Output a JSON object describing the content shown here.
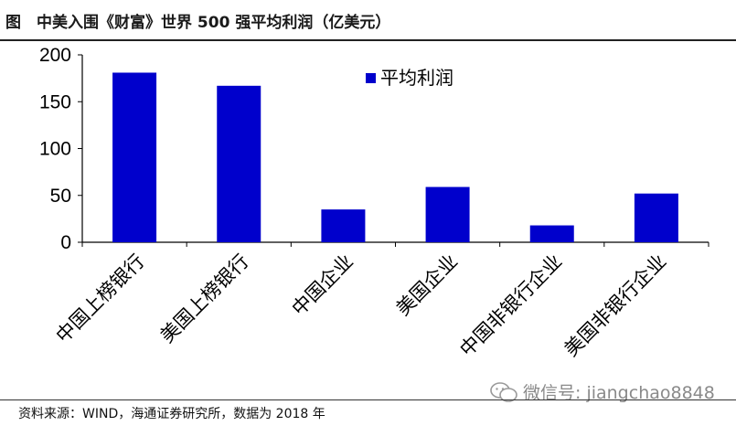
{
  "header": {
    "title": "图　中美入围《财富》世界 500 强平均利润（亿美元）"
  },
  "footer": {
    "source": "资料来源：WIND，海通证券研究所，数据为 2018 年",
    "watermark": "微信号: jiangchao8848"
  },
  "colors": {
    "bar": "#0000CC",
    "axis": "#000000"
  },
  "chart_data": {
    "type": "bar",
    "categories": [
      "中国上榜银行",
      "美国上榜银行",
      "中国企业",
      "美国企业",
      "中国非银行企业",
      "美国非银行企业"
    ],
    "series": [
      {
        "name": "平均利润",
        "values": [
          181,
          167,
          35,
          59,
          18,
          52
        ]
      }
    ],
    "ylim": [
      0,
      200
    ],
    "yticks": [
      0,
      50,
      100,
      150,
      200
    ],
    "xlabel": "",
    "ylabel": "",
    "legend": "top-right",
    "grid": false
  }
}
